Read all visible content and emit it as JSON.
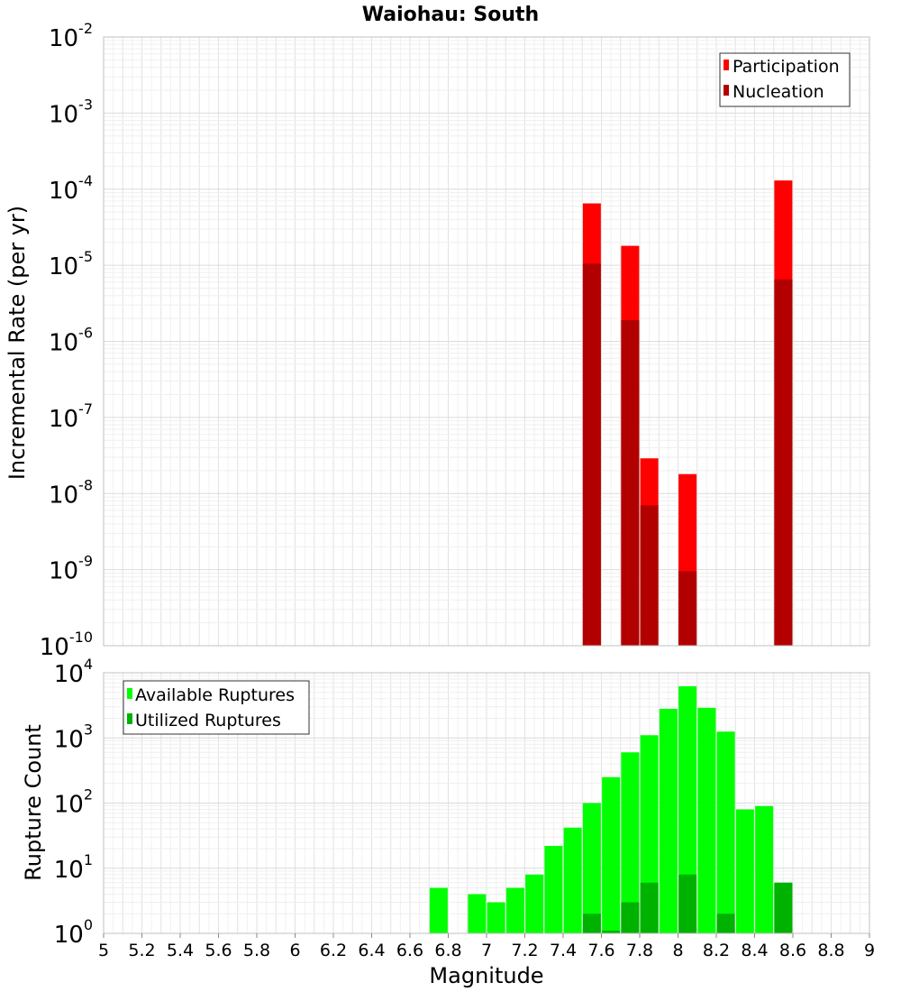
{
  "chart_data": [
    {
      "type": "bar",
      "title": "Waiohau: South",
      "xlabel": "Magnitude",
      "ylabel": "Incremental Rate (per yr)",
      "yscale": "log",
      "ylim": [
        1e-10,
        0.01
      ],
      "xlim": [
        5,
        9
      ],
      "grid": true,
      "legend_position": "top-right",
      "legend": [
        "Participation",
        "Nucleation"
      ],
      "colors": {
        "Participation": "#ff0000",
        "Nucleation": "#b20000"
      },
      "series": [
        {
          "name": "Participation",
          "x": [
            7.55,
            7.75,
            7.85,
            8.05,
            8.55
          ],
          "values": [
            6.5e-05,
            1.8e-05,
            2.9e-08,
            1.8e-08,
            0.00013
          ]
        },
        {
          "name": "Nucleation",
          "x": [
            7.55,
            7.75,
            7.85,
            8.05,
            8.55
          ],
          "values": [
            1.05e-05,
            1.9e-06,
            7e-09,
            9.5e-10,
            6.5e-06
          ]
        }
      ]
    },
    {
      "type": "bar",
      "xlabel": "Magnitude",
      "ylabel": "Rupture Count",
      "yscale": "log",
      "ylim": [
        1,
        10000
      ],
      "xlim": [
        5,
        9
      ],
      "grid": true,
      "legend_position": "top-left",
      "legend": [
        "Available Ruptures",
        "Utilized Ruptures"
      ],
      "colors": {
        "Available Ruptures": "#00ff00",
        "Utilized Ruptures": "#00b200"
      },
      "series": [
        {
          "name": "Available Ruptures",
          "x": [
            6.75,
            6.95,
            7.05,
            7.15,
            7.25,
            7.35,
            7.45,
            7.55,
            7.65,
            7.75,
            7.85,
            7.95,
            8.05,
            8.15,
            8.25,
            8.35,
            8.45,
            8.55
          ],
          "values": [
            5,
            4,
            3,
            5,
            8,
            22,
            42,
            100,
            250,
            600,
            1100,
            2800,
            6200,
            2900,
            1250,
            80,
            90,
            6
          ]
        },
        {
          "name": "Utilized Ruptures",
          "x": [
            7.55,
            7.65,
            7.75,
            7.85,
            8.05,
            8.25,
            8.55
          ],
          "values": [
            2,
            1.1,
            3,
            6,
            8,
            2,
            6
          ]
        }
      ]
    }
  ],
  "x_ticks": [
    "5",
    "5.2",
    "5.4",
    "5.6",
    "5.8",
    "6",
    "6.2",
    "6.4",
    "6.6",
    "6.8",
    "7",
    "7.2",
    "7.4",
    "7.6",
    "7.8",
    "8",
    "8.2",
    "8.4",
    "8.6",
    "8.8",
    "9"
  ],
  "top_y_ticks": [
    {
      "base": "10",
      "exp": "-10"
    },
    {
      "base": "10",
      "exp": "-9"
    },
    {
      "base": "10",
      "exp": "-8"
    },
    {
      "base": "10",
      "exp": "-7"
    },
    {
      "base": "10",
      "exp": "-6"
    },
    {
      "base": "10",
      "exp": "-5"
    },
    {
      "base": "10",
      "exp": "-4"
    },
    {
      "base": "10",
      "exp": "-3"
    },
    {
      "base": "10",
      "exp": "-2"
    }
  ],
  "bottom_y_ticks": [
    {
      "base": "10",
      "exp": "0"
    },
    {
      "base": "10",
      "exp": "1"
    },
    {
      "base": "10",
      "exp": "2"
    },
    {
      "base": "10",
      "exp": "3"
    },
    {
      "base": "10",
      "exp": "4"
    }
  ]
}
